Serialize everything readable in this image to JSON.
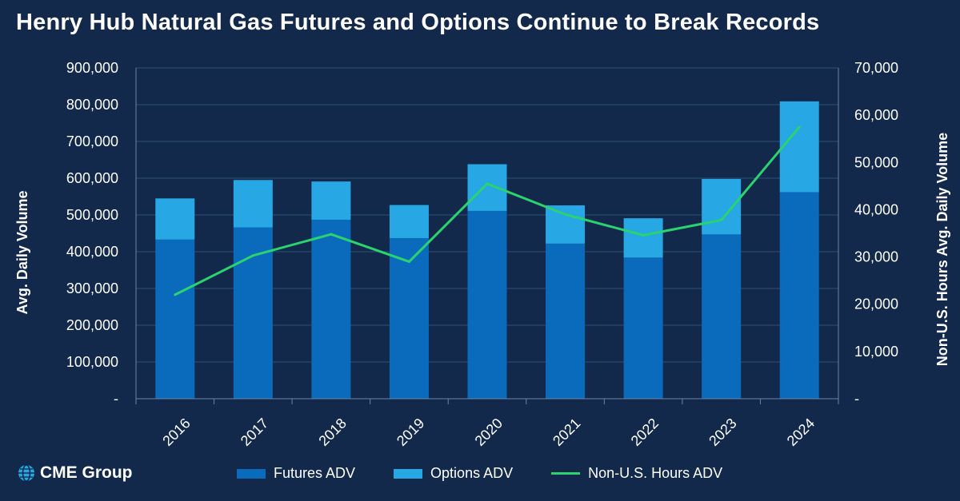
{
  "title": "Henry Hub Natural Gas Futures and Options Continue to Break Records",
  "logo": {
    "text": "CME Group",
    "icon": "globe-icon"
  },
  "colors": {
    "background": "#12294b",
    "futures": "#0a6bbc",
    "options": "#27a7e4",
    "line": "#2bd36f",
    "grid": "#2c4f7a",
    "axis": "#6a84a8"
  },
  "chart_data": {
    "type": "bar",
    "stacked": true,
    "title": "Henry Hub Natural Gas Futures and Options Continue to Break Records",
    "categories": [
      "2016",
      "2017",
      "2018",
      "2019",
      "2020",
      "2021",
      "2022",
      "2023",
      "2024"
    ],
    "ylabel": "Avg. Daily Volume",
    "ylabel_right": "Non-U.S. Hours Avg.  Daily Volume",
    "ylim": [
      0,
      900000
    ],
    "ylim_right": [
      0,
      70000
    ],
    "y_ticks": [
      "-",
      "100,000",
      "200,000",
      "300,000",
      "400,000",
      "500,000",
      "600,000",
      "700,000",
      "800,000",
      "900,000"
    ],
    "y_ticks_right": [
      "-",
      "10,000",
      "20,000",
      "30,000",
      "40,000",
      "50,000",
      "60,000",
      "70,000"
    ],
    "grid": true,
    "legend_position": "bottom",
    "series": [
      {
        "name": "Futures ADV",
        "type": "bar",
        "axis": "left",
        "values": [
          433000,
          466000,
          487000,
          437000,
          511000,
          422000,
          384000,
          447000,
          562000
        ]
      },
      {
        "name": "Options ADV",
        "type": "bar",
        "axis": "left",
        "values": [
          112000,
          129000,
          104000,
          90000,
          127000,
          104000,
          107000,
          151000,
          247000
        ]
      },
      {
        "name": "Non-U.S. Hours ADV",
        "type": "line",
        "axis": "right",
        "values": [
          22000,
          30300,
          34800,
          29000,
          45500,
          39000,
          34600,
          37800,
          57500
        ]
      }
    ]
  }
}
